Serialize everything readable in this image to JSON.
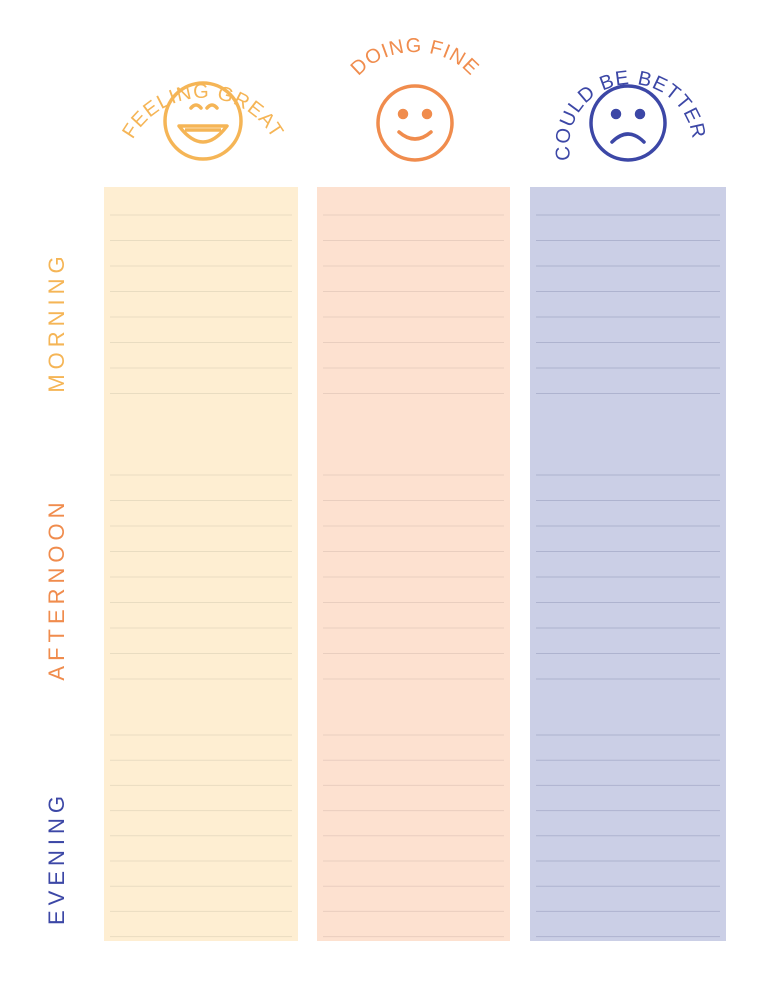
{
  "moods": [
    {
      "label": "FEELING GREAT",
      "face": "big-smile-face-icon",
      "color": "#f5b556",
      "fill": "#feeed2",
      "line": "#e9dcc1"
    },
    {
      "label": "DOING FINE",
      "face": "smile-face-icon",
      "color": "#f08c4d",
      "fill": "#fde1d0",
      "line": "#e9cebf"
    },
    {
      "label": "COULD BE BETTER",
      "face": "sad-face-icon",
      "color": "#3c47a6",
      "fill": "#cbcfe6",
      "line": "#aeb3cf"
    }
  ],
  "times": [
    {
      "label": "MORNING",
      "color": "#f5b556"
    },
    {
      "label": "AFTERNOON",
      "color": "#f08c4d"
    },
    {
      "label": "EVENING",
      "color": "#3c47a6"
    }
  ]
}
